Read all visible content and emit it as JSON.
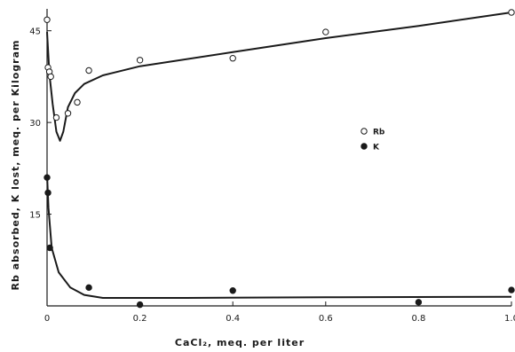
{
  "chart_data": {
    "type": "scatter",
    "xlabel": "CaCl₂, meq. per liter",
    "ylabel": "Rb absorbed, K lost, meq. per Kilogram",
    "xlim": [
      0,
      1.0
    ],
    "ylim": [
      0,
      48
    ],
    "x_ticks": [
      0,
      0.2,
      0.4,
      0.6,
      0.8,
      1.0
    ],
    "x_tick_labels": [
      "0",
      "0.2",
      "0.4",
      "0.6",
      "0.8",
      "1.0"
    ],
    "y_ticks": [
      15,
      30,
      45
    ],
    "y_tick_labels": [
      "15",
      "30",
      "45"
    ],
    "grid": false,
    "legend_position": "center-right",
    "series": [
      {
        "name": "Rb",
        "marker": "open-circle",
        "color": "#1a1a1a",
        "points": [
          {
            "x": 0.0,
            "y": 46.8
          },
          {
            "x": 0.002,
            "y": 39.0
          },
          {
            "x": 0.005,
            "y": 38.3
          },
          {
            "x": 0.008,
            "y": 37.5
          },
          {
            "x": 0.02,
            "y": 30.8
          },
          {
            "x": 0.045,
            "y": 31.5
          },
          {
            "x": 0.065,
            "y": 33.3
          },
          {
            "x": 0.09,
            "y": 38.5
          },
          {
            "x": 0.2,
            "y": 40.2
          },
          {
            "x": 0.4,
            "y": 40.5
          },
          {
            "x": 0.6,
            "y": 44.8
          },
          {
            "x": 1.0,
            "y": 48.0
          }
        ],
        "curve": [
          {
            "x": 0.0,
            "y": 44.8
          },
          {
            "x": 0.005,
            "y": 38.0
          },
          {
            "x": 0.012,
            "y": 33.0
          },
          {
            "x": 0.02,
            "y": 28.5
          },
          {
            "x": 0.028,
            "y": 27.0
          },
          {
            "x": 0.035,
            "y": 28.5
          },
          {
            "x": 0.045,
            "y": 32.5
          },
          {
            "x": 0.06,
            "y": 34.8
          },
          {
            "x": 0.08,
            "y": 36.3
          },
          {
            "x": 0.12,
            "y": 37.7
          },
          {
            "x": 0.2,
            "y": 39.2
          },
          {
            "x": 0.4,
            "y": 41.5
          },
          {
            "x": 0.6,
            "y": 43.8
          },
          {
            "x": 0.8,
            "y": 45.8
          },
          {
            "x": 1.0,
            "y": 48.0
          }
        ]
      },
      {
        "name": "K",
        "marker": "filled-circle",
        "color": "#1a1a1a",
        "points": [
          {
            "x": 0.0,
            "y": 21.0
          },
          {
            "x": 0.002,
            "y": 18.5
          },
          {
            "x": 0.006,
            "y": 9.5
          },
          {
            "x": 0.09,
            "y": 3.0
          },
          {
            "x": 0.2,
            "y": 0.2
          },
          {
            "x": 0.4,
            "y": 2.5
          },
          {
            "x": 0.8,
            "y": 0.6
          },
          {
            "x": 1.0,
            "y": 2.6
          }
        ],
        "curve": [
          {
            "x": 0.0,
            "y": 21.5
          },
          {
            "x": 0.003,
            "y": 16.0
          },
          {
            "x": 0.01,
            "y": 9.5
          },
          {
            "x": 0.025,
            "y": 5.5
          },
          {
            "x": 0.05,
            "y": 3.0
          },
          {
            "x": 0.08,
            "y": 1.8
          },
          {
            "x": 0.12,
            "y": 1.3
          },
          {
            "x": 0.3,
            "y": 1.3
          },
          {
            "x": 0.6,
            "y": 1.4
          },
          {
            "x": 1.0,
            "y": 1.5
          }
        ]
      }
    ]
  }
}
